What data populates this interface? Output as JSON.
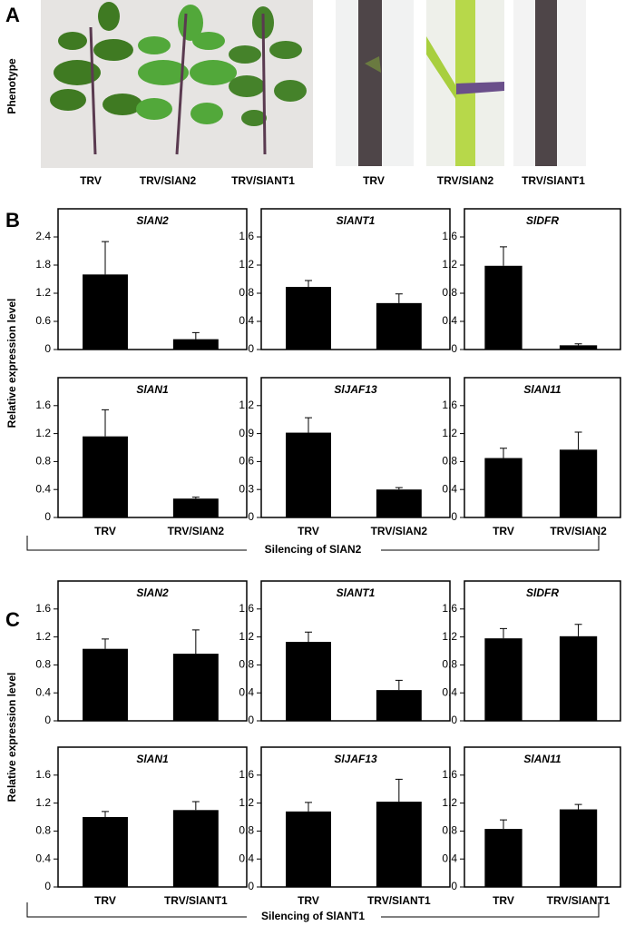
{
  "panel_labels": [
    "A",
    "B",
    "C"
  ],
  "phenotype_label": "Phenotype",
  "leaf_captions": [
    "TRV",
    "TRV/SlAN2",
    "TRV/SlANT1"
  ],
  "stem_captions": [
    "TRV",
    "TRV/SlAN2",
    "TRV/SlANT1"
  ],
  "panels": [
    {
      "y_axis_label": "Relative expression level",
      "silencing_label": "Silencing of SlAN2"
    },
    {
      "y_axis_label": "Relative expression level",
      "silencing_label": "Silencing of SlANT1"
    }
  ],
  "chart_data": [
    {
      "type": "bar",
      "title": "SlAN2",
      "categories": [
        null,
        null
      ],
      "values": [
        1.6,
        0.22
      ],
      "errors": [
        0.7,
        0.14
      ],
      "color": "#000000",
      "ylim": [
        0,
        3
      ],
      "yticks": [
        0,
        0.6,
        1.2,
        1.8,
        2.4
      ]
    },
    {
      "type": "bar",
      "title": "SlANT1",
      "categories": [
        null,
        null
      ],
      "values": [
        0.89,
        0.66
      ],
      "errors": [
        0.09,
        0.13
      ],
      "color": "#000000",
      "ylim": [
        0,
        2
      ],
      "yticks": [
        0,
        0.4,
        0.8,
        1.2,
        1.6
      ]
    },
    {
      "type": "bar",
      "title": "SlDFR",
      "categories": [
        null,
        null
      ],
      "values": [
        1.19,
        0.06
      ],
      "errors": [
        0.27,
        0.02
      ],
      "color": "#000000",
      "ylim": [
        0,
        2
      ],
      "yticks": [
        0,
        0.4,
        0.8,
        1.2,
        1.6
      ]
    },
    {
      "type": "bar",
      "title": "SlAN1",
      "categories": [
        "TRV",
        "TRV/SlAN2"
      ],
      "values": [
        1.16,
        0.27
      ],
      "errors": [
        0.38,
        0.02
      ],
      "color": "#000000",
      "ylim": [
        0,
        2
      ],
      "yticks": [
        0,
        0.4,
        0.8,
        1.2,
        1.6
      ]
    },
    {
      "type": "bar",
      "title": "SlJAF13",
      "categories": [
        "TRV",
        "TRV/SlAN2"
      ],
      "values": [
        0.91,
        0.3
      ],
      "errors": [
        0.16,
        0.02
      ],
      "color": "#000000",
      "ylim": [
        0,
        1.5
      ],
      "yticks": [
        0,
        0.3,
        0.6,
        0.9,
        1.2
      ]
    },
    {
      "type": "bar",
      "title": "SlAN11",
      "categories": [
        "TRV",
        "TRV/SlAN2"
      ],
      "values": [
        0.85,
        0.97
      ],
      "errors": [
        0.14,
        0.25
      ],
      "color": "#000000",
      "ylim": [
        0,
        2
      ],
      "yticks": [
        0,
        0.4,
        0.8,
        1.2,
        1.6
      ]
    },
    {
      "type": "bar",
      "title": "SlAN2",
      "categories": [
        null,
        null
      ],
      "values": [
        1.03,
        0.96
      ],
      "errors": [
        0.14,
        0.34
      ],
      "color": "#000000",
      "ylim": [
        0,
        2
      ],
      "yticks": [
        0,
        0.4,
        0.8,
        1.2,
        1.6
      ]
    },
    {
      "type": "bar",
      "title": "SlANT1",
      "categories": [
        null,
        null
      ],
      "values": [
        1.13,
        0.44
      ],
      "errors": [
        0.14,
        0.14
      ],
      "color": "#000000",
      "ylim": [
        0,
        2
      ],
      "yticks": [
        0,
        0.4,
        0.8,
        1.2,
        1.6
      ]
    },
    {
      "type": "bar",
      "title": "SlDFR",
      "categories": [
        null,
        null
      ],
      "values": [
        1.18,
        1.21
      ],
      "errors": [
        0.14,
        0.17
      ],
      "color": "#000000",
      "ylim": [
        0,
        2
      ],
      "yticks": [
        0,
        0.4,
        0.8,
        1.2,
        1.6
      ]
    },
    {
      "type": "bar",
      "title": "SlAN1",
      "categories": [
        "TRV",
        "TRV/SlANT1"
      ],
      "values": [
        1.0,
        1.1
      ],
      "errors": [
        0.08,
        0.12
      ],
      "color": "#000000",
      "ylim": [
        0,
        2
      ],
      "yticks": [
        0,
        0.4,
        0.8,
        1.2,
        1.6
      ]
    },
    {
      "type": "bar",
      "title": "SlJAF13",
      "categories": [
        "TRV",
        "TRV/SlANT1"
      ],
      "values": [
        1.08,
        1.22
      ],
      "errors": [
        0.13,
        0.32
      ],
      "color": "#000000",
      "ylim": [
        0,
        2
      ],
      "yticks": [
        0,
        0.4,
        0.8,
        1.2,
        1.6
      ]
    },
    {
      "type": "bar",
      "title": "SlAN11",
      "categories": [
        "TRV",
        "TRV/SlANT1"
      ],
      "values": [
        0.83,
        1.11
      ],
      "errors": [
        0.13,
        0.07
      ],
      "color": "#000000",
      "ylim": [
        0,
        2
      ],
      "yticks": [
        0,
        0.4,
        0.8,
        1.2,
        1.6
      ]
    }
  ]
}
